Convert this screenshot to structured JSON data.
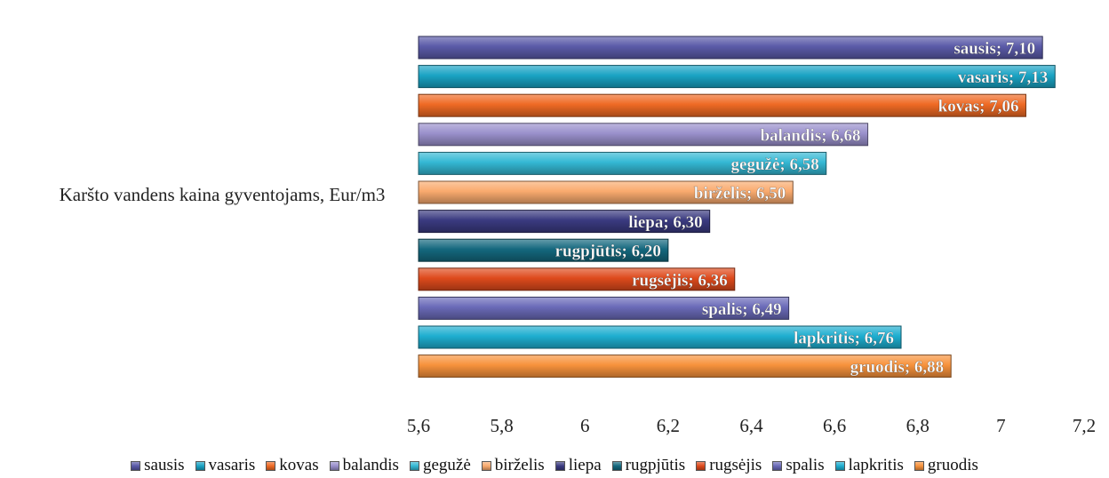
{
  "chart_data": {
    "type": "bar",
    "orientation": "horizontal",
    "category": "Karšto vandens kaina gyventojams, Eur/m3",
    "series": [
      {
        "name": "sausis",
        "value": 7.1,
        "label": "sausis; 7,10",
        "color": "#5a5aa8"
      },
      {
        "name": "vasaris",
        "value": 7.13,
        "label": "vasaris; 7,13",
        "color": "#1aa3c4"
      },
      {
        "name": "kovas",
        "value": 7.06,
        "label": "kovas; 7,06",
        "color": "#ef6a24"
      },
      {
        "name": "balandis",
        "value": 6.68,
        "label": "balandis; 6,68",
        "color": "#9a90cc"
      },
      {
        "name": "gegužė",
        "value": 6.58,
        "label": "gegužė; 6,58",
        "color": "#34b8d4"
      },
      {
        "name": "birželis",
        "value": 6.5,
        "label": "birželis; 6,50",
        "color": "#f9aa6e"
      },
      {
        "name": "liepa",
        "value": 6.3,
        "label": "liepa; 6,30",
        "color": "#3a3a80"
      },
      {
        "name": "rugpjūtis",
        "value": 6.2,
        "label": "rugpjūtis; 6,20",
        "color": "#14687e"
      },
      {
        "name": "rugsėjis",
        "value": 6.36,
        "label": "rugsėjis; 6,36",
        "color": "#de4a1c"
      },
      {
        "name": "spalis",
        "value": 6.49,
        "label": "spalis; 6,49",
        "color": "#6a6ab8"
      },
      {
        "name": "lapkritis",
        "value": 6.76,
        "label": "lapkritis; 6,76",
        "color": "#1eaed0"
      },
      {
        "name": "gruodis",
        "value": 6.88,
        "label": "gruodis; 6,88",
        "color": "#f7923c"
      }
    ],
    "xlim": [
      5.6,
      7.2
    ],
    "ticks": [
      "5,6",
      "5,8",
      "6",
      "6,2",
      "6,4",
      "6,6",
      "6,8",
      "7",
      "7,2"
    ],
    "legend_position": "bottom",
    "grid": false
  }
}
